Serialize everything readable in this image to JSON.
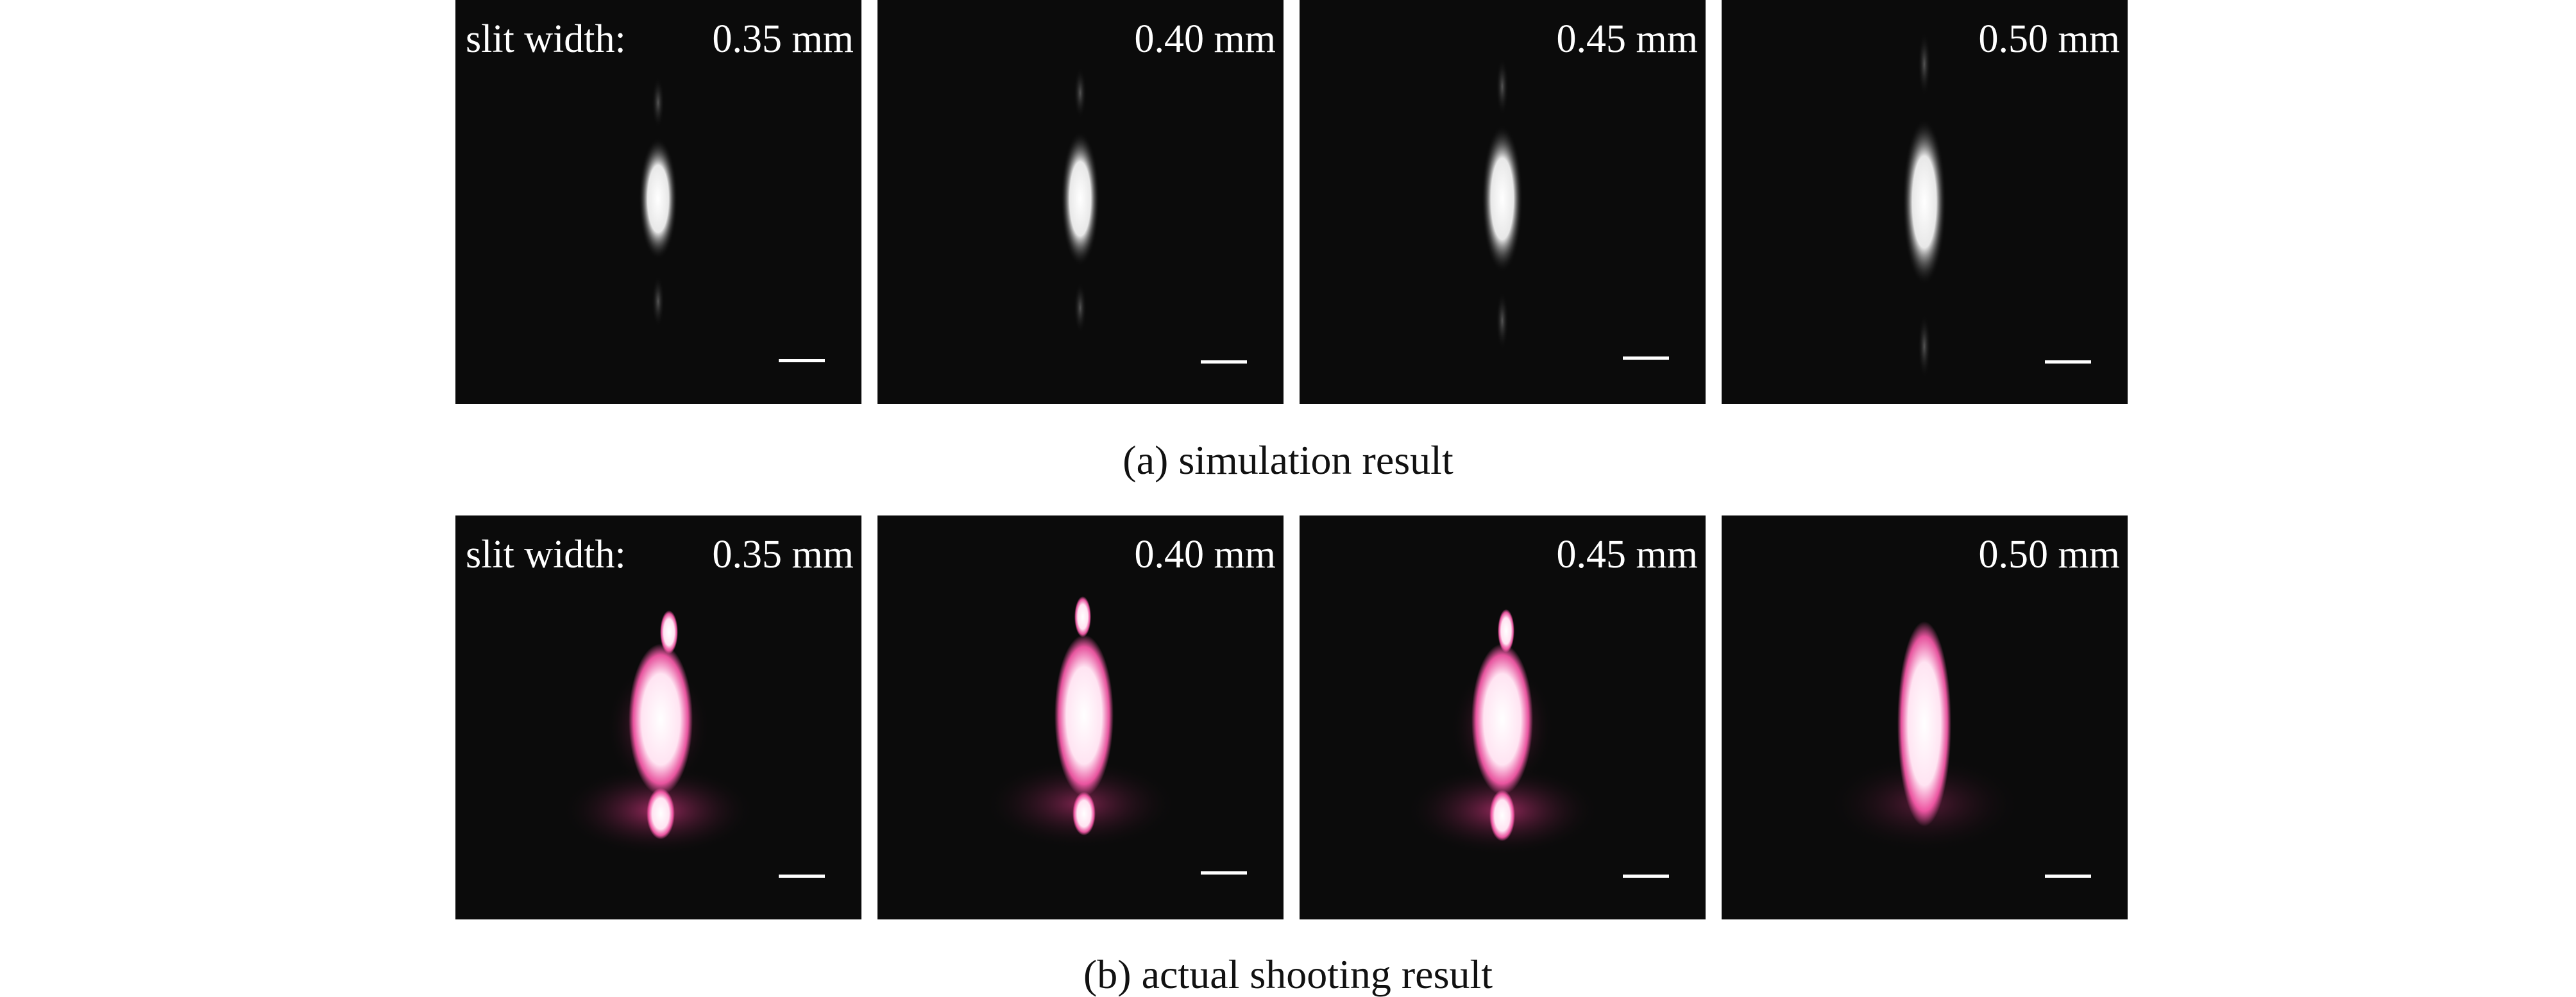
{
  "row_label": "slit width:",
  "slit_widths": [
    "0.35 mm",
    "0.40 mm",
    "0.45 mm",
    "0.50 mm"
  ],
  "captions": {
    "simulation": "(a) simulation result",
    "actual": "(b) actual shooting result"
  },
  "colors": {
    "background": "#0b0b0b",
    "sim_spot": "#ffffff",
    "actual_spot": "#ff5cae"
  }
}
